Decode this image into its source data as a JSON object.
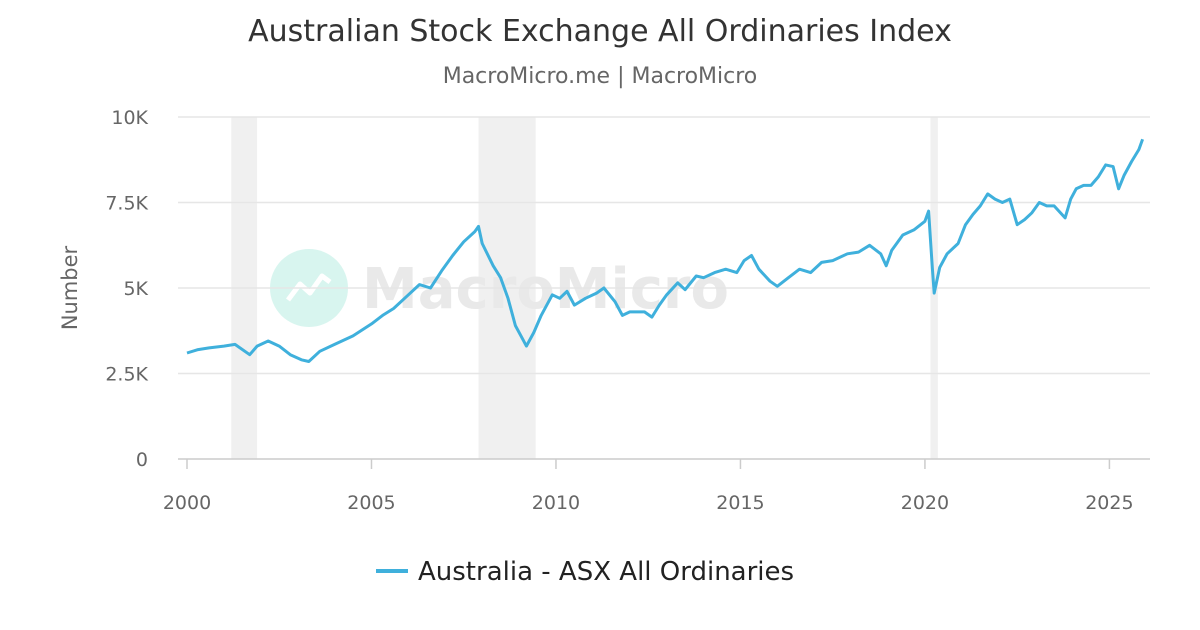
{
  "chart_data": {
    "type": "line",
    "title": "Australian Stock Exchange All Ordinaries Index",
    "subtitle": "MacroMicro.me | MacroMicro",
    "ylabel": "Number",
    "xlabel": "",
    "xlim": [
      2000,
      2026.1
    ],
    "ylim": [
      0,
      10000
    ],
    "x_ticks": [
      "2000",
      "2005",
      "2010",
      "2015",
      "2020",
      "2025"
    ],
    "y_ticks": [
      "0",
      "2.5K",
      "5K",
      "7.5K",
      "10K"
    ],
    "grid": "horizontal",
    "legend_position": "bottom-center",
    "watermark": "MacroMicro",
    "recession_bands": [
      [
        2001.2,
        2001.9
      ],
      [
        2007.9,
        2009.45
      ],
      [
        2020.15,
        2020.35
      ]
    ],
    "colors": {
      "line": "#3fb0dc",
      "band": "#f0f0f0",
      "grid": "#e6e6e6"
    },
    "series": [
      {
        "name": "Australia - ASX All Ordinaries",
        "points": [
          [
            2000.0,
            3100
          ],
          [
            2000.3,
            3200
          ],
          [
            2000.6,
            3250
          ],
          [
            2001.0,
            3300
          ],
          [
            2001.3,
            3350
          ],
          [
            2001.7,
            3050
          ],
          [
            2001.9,
            3300
          ],
          [
            2002.2,
            3450
          ],
          [
            2002.5,
            3300
          ],
          [
            2002.8,
            3050
          ],
          [
            2003.1,
            2900
          ],
          [
            2003.3,
            2850
          ],
          [
            2003.6,
            3150
          ],
          [
            2004.0,
            3350
          ],
          [
            2004.5,
            3600
          ],
          [
            2005.0,
            3950
          ],
          [
            2005.3,
            4200
          ],
          [
            2005.6,
            4400
          ],
          [
            2006.0,
            4800
          ],
          [
            2006.3,
            5100
          ],
          [
            2006.6,
            5000
          ],
          [
            2006.9,
            5500
          ],
          [
            2007.2,
            5950
          ],
          [
            2007.5,
            6350
          ],
          [
            2007.8,
            6650
          ],
          [
            2007.9,
            6800
          ],
          [
            2008.0,
            6300
          ],
          [
            2008.3,
            5650
          ],
          [
            2008.5,
            5300
          ],
          [
            2008.7,
            4700
          ],
          [
            2008.9,
            3900
          ],
          [
            2009.1,
            3500
          ],
          [
            2009.2,
            3300
          ],
          [
            2009.4,
            3700
          ],
          [
            2009.6,
            4200
          ],
          [
            2009.9,
            4800
          ],
          [
            2010.1,
            4700
          ],
          [
            2010.3,
            4900
          ],
          [
            2010.5,
            4500
          ],
          [
            2010.8,
            4700
          ],
          [
            2011.1,
            4850
          ],
          [
            2011.3,
            5000
          ],
          [
            2011.6,
            4600
          ],
          [
            2011.8,
            4200
          ],
          [
            2012.0,
            4300
          ],
          [
            2012.4,
            4300
          ],
          [
            2012.6,
            4150
          ],
          [
            2012.8,
            4500
          ],
          [
            2013.0,
            4800
          ],
          [
            2013.3,
            5150
          ],
          [
            2013.5,
            4950
          ],
          [
            2013.8,
            5350
          ],
          [
            2014.0,
            5300
          ],
          [
            2014.3,
            5450
          ],
          [
            2014.6,
            5550
          ],
          [
            2014.9,
            5450
          ],
          [
            2015.1,
            5800
          ],
          [
            2015.3,
            5950
          ],
          [
            2015.5,
            5550
          ],
          [
            2015.8,
            5200
          ],
          [
            2016.0,
            5050
          ],
          [
            2016.3,
            5300
          ],
          [
            2016.6,
            5550
          ],
          [
            2016.9,
            5450
          ],
          [
            2017.2,
            5750
          ],
          [
            2017.5,
            5800
          ],
          [
            2017.9,
            6000
          ],
          [
            2018.2,
            6050
          ],
          [
            2018.5,
            6250
          ],
          [
            2018.8,
            6000
          ],
          [
            2018.95,
            5650
          ],
          [
            2019.1,
            6100
          ],
          [
            2019.4,
            6550
          ],
          [
            2019.7,
            6700
          ],
          [
            2020.0,
            6950
          ],
          [
            2020.1,
            7250
          ],
          [
            2020.2,
            5600
          ],
          [
            2020.25,
            4850
          ],
          [
            2020.4,
            5600
          ],
          [
            2020.6,
            6000
          ],
          [
            2020.9,
            6300
          ],
          [
            2021.1,
            6850
          ],
          [
            2021.3,
            7150
          ],
          [
            2021.5,
            7400
          ],
          [
            2021.7,
            7750
          ],
          [
            2021.9,
            7600
          ],
          [
            2022.1,
            7500
          ],
          [
            2022.3,
            7600
          ],
          [
            2022.5,
            6850
          ],
          [
            2022.7,
            7000
          ],
          [
            2022.9,
            7200
          ],
          [
            2023.1,
            7500
          ],
          [
            2023.3,
            7400
          ],
          [
            2023.5,
            7400
          ],
          [
            2023.8,
            7050
          ],
          [
            2023.95,
            7600
          ],
          [
            2024.1,
            7900
          ],
          [
            2024.3,
            8000
          ],
          [
            2024.5,
            8000
          ],
          [
            2024.7,
            8250
          ],
          [
            2024.9,
            8600
          ],
          [
            2025.1,
            8550
          ],
          [
            2025.25,
            7900
          ],
          [
            2025.4,
            8300
          ],
          [
            2025.6,
            8700
          ],
          [
            2025.8,
            9050
          ],
          [
            2025.9,
            9350
          ]
        ]
      }
    ]
  }
}
